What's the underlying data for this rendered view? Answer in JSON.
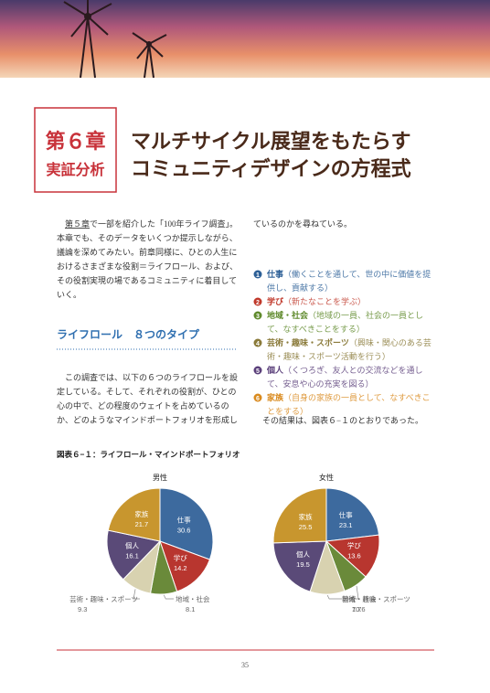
{
  "chapter": {
    "number": "第６章",
    "label": "実証分析"
  },
  "title": {
    "lines": [
      "マルチサイクル展望をもたらす",
      "コミュニティデザインの方程式"
    ]
  },
  "intro": {
    "ref": "第５章",
    "lines": [
      "で一部を紹介した「100年ライフ調査」。",
      "本章でも、そのデータをいくつか提示しながら、",
      "議論を深めてみたい。前章同様に、ひとの人生に",
      "おけるさまざまな役割＝ライフロール、および、",
      "その役割実現の場であるコミュニティに着目して",
      "いく。"
    ]
  },
  "section_heading": "ライフロール　８つのタイプ",
  "paragraph": {
    "lines": [
      "この調査では、以下の６つのライフロールを設",
      "定している。そして、それぞれの役割が、ひとの",
      "心の中で、どの程度のウェイトを占めているの",
      "か、どのようなマインドポートフォリオを形成し",
      "ているのかを尋ねている。"
    ]
  },
  "list": {
    "items": [
      {
        "marker": "1",
        "name": "仕事",
        "color": "#2c5f96",
        "desc_lines": [
          "（働くことを通して、世の中に価値を提",
          "供し、貢献する）"
        ]
      },
      {
        "marker": "2",
        "name": "学び",
        "color": "#c0392b",
        "desc_lines": [
          "（新たなことを学ぶ）"
        ]
      },
      {
        "marker": "3",
        "name": "地域・社会",
        "color": "#5f8a2c",
        "desc_lines": [
          "（地域の一員、社会の一員とし",
          "て、なすべきことをする）"
        ]
      },
      {
        "marker": "4",
        "name": "芸術・趣味・スポーツ",
        "color": "#8a7a3a",
        "desc_lines": [
          "（興味・関心のある芸",
          "術・趣味・スポーツ活動を行う）"
        ]
      },
      {
        "marker": "5",
        "name": "個人",
        "color": "#5a3f7a",
        "desc_lines": [
          "（くつろぎ、友人との交流などを通し",
          "て、安息や心の充実を図る）"
        ]
      },
      {
        "marker": "6",
        "name": "家族",
        "color": "#d98a1e",
        "desc_lines": [
          "（自身の家族の一員として、なすべきこ",
          "とをする）"
        ]
      }
    ]
  },
  "result": "その結果は、図表６−１のとおりであった。",
  "figure": {
    "caption": "図表６−１：ライフロール・マインドポートフォリオ"
  },
  "chart_data": [
    {
      "type": "pie",
      "title": "男性",
      "categories": [
        "仕事",
        "学び",
        "地域・社会",
        "芸術・趣味・スポーツ",
        "個人",
        "家族"
      ],
      "values": [
        30.6,
        14.2,
        8.1,
        9.3,
        16.1,
        21.7
      ],
      "colors": [
        "#3d6a9e",
        "#b8362f",
        "#6a8a3a",
        "#d8d2b0",
        "#5a4a78",
        "#c8962e"
      ]
    },
    {
      "type": "pie",
      "title": "女性",
      "categories": [
        "仕事",
        "学び",
        "地域・社会",
        "芸術・趣味・スポーツ",
        "個人",
        "家族"
      ],
      "values": [
        23.1,
        13.6,
        7.7,
        10.6,
        19.5,
        25.5
      ],
      "colors": [
        "#3d6a9e",
        "#b8362f",
        "#6a8a3a",
        "#d8d2b0",
        "#5a4a78",
        "#c8962e"
      ]
    }
  ],
  "page_number": "35"
}
